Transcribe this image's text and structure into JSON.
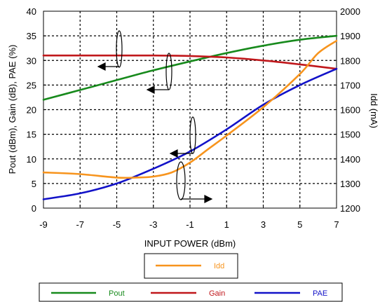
{
  "chart_data": {
    "type": "line",
    "title": "",
    "xlabel": "INPUT POWER (dBm)",
    "ylabel_left": "Pout (dBm), Gain (dB), PAE (%)",
    "ylabel_right": "Idd (mA)",
    "xlim": [
      -9,
      7
    ],
    "ylim_left": [
      0,
      40
    ],
    "ylim_right": [
      1200,
      2000
    ],
    "x_ticks": [
      "-9",
      "-7",
      "-5",
      "-3",
      "-1",
      "1",
      "3",
      "5",
      "7"
    ],
    "y_left_ticks": [
      "0",
      "5",
      "10",
      "15",
      "20",
      "25",
      "30",
      "35",
      "40"
    ],
    "y_right_ticks": [
      "1200",
      "1300",
      "1400",
      "1500",
      "1600",
      "1700",
      "1800",
      "1900",
      "2000"
    ],
    "grid": true,
    "series": [
      {
        "name": "Pout",
        "axis": "left",
        "color": "#178a1c",
        "x": [
          -9,
          -7,
          -5,
          -3,
          -1,
          1,
          3,
          5,
          7
        ],
        "y": [
          22,
          24,
          26,
          28,
          29.8,
          31.5,
          33,
          34.2,
          35
        ]
      },
      {
        "name": "Gain",
        "axis": "left",
        "color": "#c0171b",
        "x": [
          -9,
          -7,
          -5,
          -3,
          -1,
          1,
          3,
          5,
          7
        ],
        "y": [
          31,
          31,
          31,
          31,
          30.9,
          30.6,
          30,
          29.2,
          28.3
        ]
      },
      {
        "name": "PAE",
        "axis": "left",
        "color": "#1212c8",
        "x": [
          -9,
          -7,
          -5,
          -3,
          -1,
          1,
          3,
          5,
          7
        ],
        "y": [
          1.8,
          3,
          5,
          8,
          11.5,
          16,
          21,
          25,
          28.3
        ]
      },
      {
        "name": "Idd",
        "axis": "right",
        "color": "#f7941d",
        "x": [
          -9,
          -7,
          -5,
          -4,
          -3,
          -2,
          -1,
          0,
          1,
          3,
          5,
          6,
          7
        ],
        "y": [
          1345,
          1338,
          1324,
          1324,
          1328,
          1345,
          1385,
          1440,
          1495,
          1610,
          1745,
          1830,
          1880
        ]
      }
    ],
    "legend": {
      "top": [
        "Idd"
      ],
      "bottom": [
        "Pout",
        "Gain",
        "PAE"
      ],
      "placement": "bottom"
    },
    "annotations": "ellipse-and-arrow markers indicating which axis each curve belongs to"
  }
}
